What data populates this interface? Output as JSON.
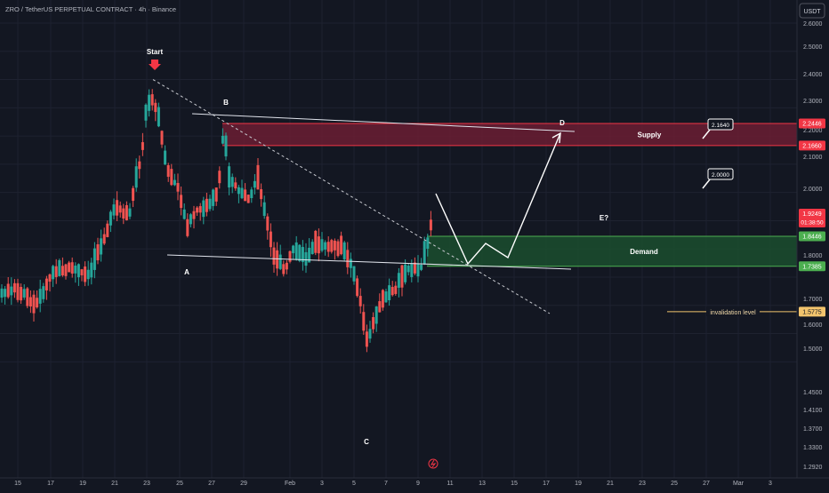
{
  "header": {
    "title": "ZRO / TetherUS PERPETUAL CONTRACT · 4h · Binance",
    "currency_label": "USDT"
  },
  "colors": {
    "background": "#131722",
    "up": "#26a69a",
    "down": "#ef5350",
    "supply_fill": "#6b1d33",
    "demand_fill": "#1b4d2e",
    "grid": "#1e2230",
    "axis_text": "#b2b5be",
    "invalidation": "#f2c46d"
  },
  "chart_data": {
    "type": "candlestick",
    "y_axis": {
      "min": 1.28,
      "max": 2.64,
      "ticks": [
        "2.6000",
        "2.5000",
        "2.4000",
        "2.3000",
        "2.2000",
        "2.1000",
        "2.0000",
        "1.9000",
        "1.8000",
        "1.7000",
        "1.6000",
        "1.5000",
        "1.4500",
        "1.4100",
        "1.3700",
        "1.3300",
        "1.2920"
      ],
      "tick_values": [
        2.6,
        2.5,
        2.4,
        2.3,
        2.2,
        2.1,
        2.0,
        1.9,
        1.8,
        1.7,
        1.6,
        1.5,
        1.45,
        1.41,
        1.37,
        1.33,
        1.292
      ]
    },
    "x_axis": {
      "ticks": [
        "15",
        "17",
        "19",
        "21",
        "23",
        "25",
        "27",
        "29",
        "Feb",
        "3",
        "5",
        "7",
        "9",
        "11",
        "13",
        "15",
        "17",
        "19",
        "21",
        "23",
        "25",
        "27",
        "Mar",
        "3"
      ],
      "tick_positions": [
        20,
        57,
        93,
        129,
        165,
        202,
        238,
        274,
        326,
        362,
        398,
        434,
        470,
        506,
        542,
        578,
        614,
        650,
        686,
        722,
        758,
        794,
        830,
        866
      ]
    },
    "price_labels": [
      {
        "value": 2.2446,
        "text": "2.2446",
        "kind": "supply"
      },
      {
        "value": 2.166,
        "text": "2.1660",
        "kind": "supply"
      },
      {
        "value": 1.9249,
        "text": "1.9249",
        "sub": "01:38:50",
        "kind": "current"
      },
      {
        "value": 1.8446,
        "text": "1.8446",
        "kind": "demand"
      },
      {
        "value": 1.7385,
        "text": "1.7385",
        "kind": "demand"
      },
      {
        "value": 1.5775,
        "text": "1.5775",
        "kind": "invalidation"
      }
    ],
    "zones": [
      {
        "label": "Supply",
        "top": 2.2446,
        "bottom": 2.166
      },
      {
        "label": "Demand",
        "top": 1.8446,
        "bottom": 1.7385
      }
    ],
    "wave_labels": [
      "Start",
      "A",
      "B",
      "C",
      "D",
      "E?"
    ],
    "callouts": [
      "2.1640",
      "2.0000"
    ],
    "invalidation_label": "invalidation level"
  }
}
